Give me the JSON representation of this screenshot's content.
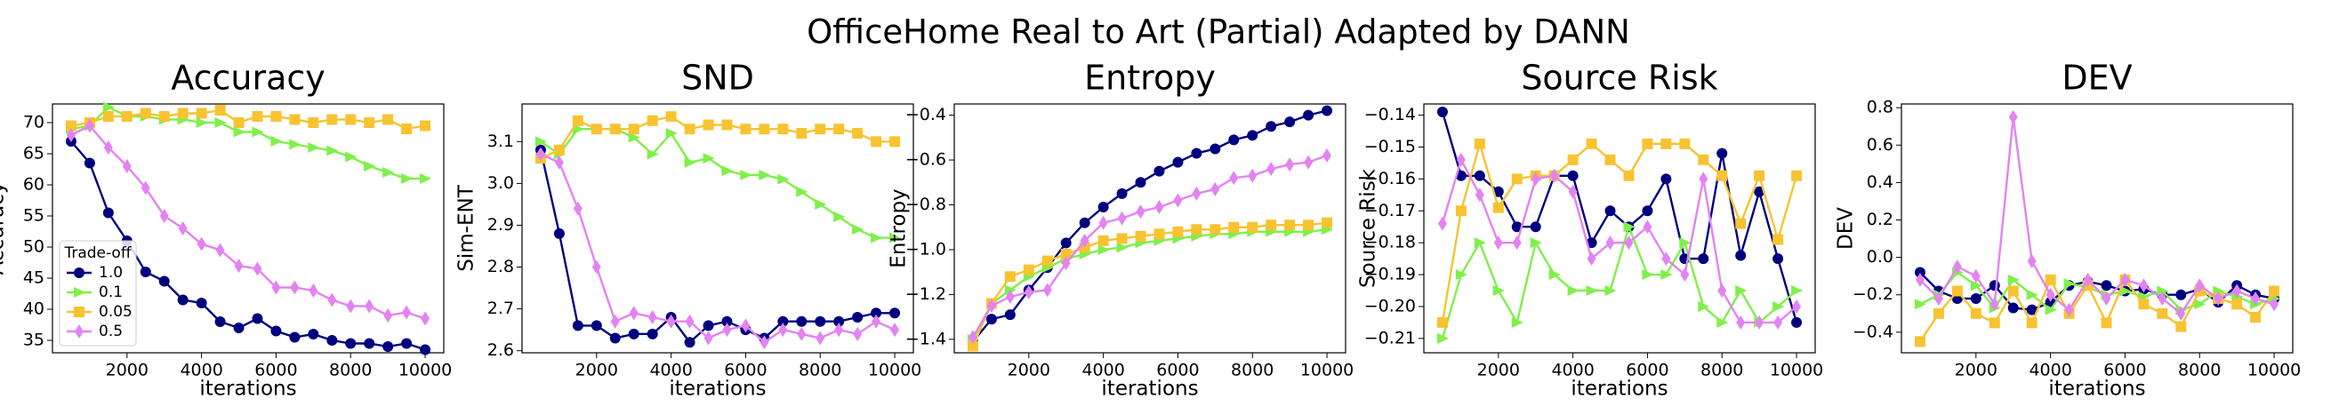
{
  "title": "OfficeHome Real to Art (Partial) Adapted by DANN",
  "chart_data": [
    {
      "type": "line",
      "title": "Accuracy",
      "x_label": "iterations",
      "y_label": "Accuracy",
      "x": [
        500,
        1000,
        1500,
        2000,
        2500,
        3000,
        3500,
        4000,
        4500,
        5000,
        5500,
        6000,
        6500,
        7000,
        7500,
        8000,
        8500,
        9000,
        9500,
        10000
      ],
      "xlim": [
        0,
        10500
      ],
      "xticks": [
        2000,
        4000,
        6000,
        8000,
        10000
      ],
      "ylim": [
        33,
        73
      ],
      "yticks": [
        35,
        40,
        45,
        50,
        55,
        60,
        65,
        70
      ],
      "legend": "lower left",
      "legend_title": "Trade-off",
      "series": [
        {
          "name": "1.0",
          "color": "#00007f",
          "marker": "circle",
          "values": [
            67,
            63.5,
            55.5,
            51,
            46,
            44.5,
            41.5,
            41,
            38,
            37,
            38.5,
            36.5,
            35.5,
            36,
            35,
            34.5,
            34.5,
            34,
            34.5,
            33.5
          ]
        },
        {
          "name": "0.1",
          "color": "#7ff04a",
          "marker": "triangle",
          "values": [
            69,
            69.5,
            72.5,
            71,
            71,
            70.5,
            70.5,
            70,
            70,
            68.5,
            68.5,
            67,
            66.5,
            66,
            65.5,
            64.5,
            63,
            62,
            61,
            61
          ]
        },
        {
          "name": "0.05",
          "color": "#f7c331",
          "marker": "square",
          "values": [
            69.5,
            70,
            71,
            71,
            71.5,
            71,
            71.5,
            71.5,
            72,
            70,
            71,
            71,
            70.5,
            70,
            70.5,
            70.5,
            70,
            70.5,
            69,
            69.5
          ]
        },
        {
          "name": "0.5",
          "color": "#e383f2",
          "marker": "diamond",
          "values": [
            68,
            69.5,
            66,
            63,
            59.5,
            55,
            53,
            50.5,
            49.5,
            47,
            46.5,
            43.5,
            43.5,
            43,
            41.5,
            40.5,
            40.5,
            39,
            39.5,
            38.5
          ]
        }
      ]
    },
    {
      "type": "line",
      "title": "SND",
      "x_label": "iterations",
      "y_label": "Sim-ENT",
      "x": [
        500,
        1000,
        1500,
        2000,
        2500,
        3000,
        3500,
        4000,
        4500,
        5000,
        5500,
        6000,
        6500,
        7000,
        7500,
        8000,
        8500,
        9000,
        9500,
        10000
      ],
      "xlim": [
        0,
        10500
      ],
      "xticks": [
        2000,
        4000,
        6000,
        8000,
        10000
      ],
      "ylim": [
        2.595,
        3.19
      ],
      "yticks": [
        2.6,
        2.7,
        2.8,
        2.9,
        {
          "value": 3,
          "label": "3.0"
        },
        3.1
      ],
      "series": [
        {
          "color": "#00007f",
          "marker": "circle",
          "values": [
            3.08,
            2.88,
            2.66,
            2.66,
            2.63,
            2.64,
            2.64,
            2.68,
            2.62,
            2.66,
            2.67,
            2.65,
            2.63,
            2.67,
            2.67,
            2.67,
            2.67,
            2.68,
            2.69,
            2.69
          ]
        },
        {
          "color": "#7ff04a",
          "marker": "triangle",
          "values": [
            3.1,
            3.07,
            3.13,
            3.13,
            3.13,
            3.11,
            3.07,
            3.12,
            3.05,
            3.06,
            3.03,
            3.02,
            3.02,
            3.01,
            2.98,
            2.95,
            2.92,
            2.89,
            2.87,
            2.87
          ]
        },
        {
          "color": "#f7c331",
          "marker": "square",
          "values": [
            3.06,
            3.08,
            3.15,
            3.13,
            3.13,
            3.13,
            3.15,
            3.16,
            3.13,
            3.14,
            3.14,
            3.13,
            3.13,
            3.13,
            3.12,
            3.13,
            3.13,
            3.12,
            3.1,
            3.1
          ]
        },
        {
          "color": "#e383f2",
          "marker": "diamond",
          "values": [
            3.07,
            3.05,
            2.94,
            2.8,
            2.67,
            2.69,
            2.68,
            2.67,
            2.67,
            2.63,
            2.65,
            2.66,
            2.62,
            2.65,
            2.64,
            2.63,
            2.65,
            2.64,
            2.67,
            2.65
          ]
        }
      ]
    },
    {
      "type": "line",
      "title": "Entropy",
      "x_label": "iterations",
      "y_label": "Entropy",
      "x": [
        500,
        1000,
        1500,
        2000,
        2500,
        3000,
        3500,
        4000,
        4500,
        5000,
        5500,
        6000,
        6500,
        7000,
        7500,
        8000,
        8500,
        9000,
        9500,
        10000
      ],
      "xlim": [
        0,
        10500
      ],
      "xticks": [
        2000,
        4000,
        6000,
        8000,
        10000
      ],
      "ylim": [
        -1.46,
        -0.35
      ],
      "yticks": [
        {
          "value": -1.4,
          "label": "−1.4"
        },
        {
          "value": -1.2,
          "label": "−1.2"
        },
        {
          "value": -1,
          "label": "−1.0"
        },
        {
          "value": -0.8,
          "label": "−0.8"
        },
        {
          "value": -0.6,
          "label": "−0.6"
        },
        {
          "value": -0.4,
          "label": "−0.4"
        }
      ],
      "series": [
        {
          "color": "#00007f",
          "marker": "circle",
          "values": [
            -1.41,
            -1.31,
            -1.29,
            -1.18,
            -1.08,
            -0.97,
            -0.88,
            -0.81,
            -0.75,
            -0.7,
            -0.65,
            -0.61,
            -0.57,
            -0.55,
            -0.51,
            -0.49,
            -0.45,
            -0.43,
            -0.4,
            -0.38
          ]
        },
        {
          "color": "#7ff04a",
          "marker": "triangle",
          "values": [
            -1.4,
            -1.24,
            -1.18,
            -1.12,
            -1.08,
            -1.04,
            -1.02,
            -1,
            -0.99,
            -0.97,
            -0.96,
            -0.95,
            -0.94,
            -0.93,
            -0.93,
            -0.92,
            -0.92,
            -0.92,
            -0.92,
            -0.91
          ]
        },
        {
          "color": "#f7c331",
          "marker": "square",
          "values": [
            -1.43,
            -1.24,
            -1.12,
            -1.09,
            -1.05,
            -1.02,
            -0.99,
            -0.96,
            -0.95,
            -0.94,
            -0.93,
            -0.92,
            -0.91,
            -0.91,
            -0.9,
            -0.9,
            -0.89,
            -0.89,
            -0.89,
            -0.88
          ]
        },
        {
          "color": "#e383f2",
          "marker": "diamond",
          "values": [
            -1.39,
            -1.25,
            -1.21,
            -1.19,
            -1.18,
            -1.06,
            -0.96,
            -0.88,
            -0.86,
            -0.83,
            -0.81,
            -0.78,
            -0.75,
            -0.73,
            -0.68,
            -0.67,
            -0.64,
            -0.62,
            -0.61,
            -0.58
          ]
        }
      ]
    },
    {
      "type": "line",
      "title": "Source Risk",
      "x_label": "iterations",
      "y_label": "Source Risk",
      "x": [
        500,
        1000,
        1500,
        2000,
        2500,
        3000,
        3500,
        4000,
        4500,
        5000,
        5500,
        6000,
        6500,
        7000,
        7500,
        8000,
        8500,
        9000,
        9500,
        10000
      ],
      "xlim": [
        0,
        10500
      ],
      "xticks": [
        2000,
        4000,
        6000,
        8000,
        10000
      ],
      "ylim": [
        -0.2145,
        -0.1365
      ],
      "yticks": [
        {
          "value": -0.14,
          "label": "−0.14"
        },
        {
          "value": -0.15,
          "label": "−0.15"
        },
        {
          "value": -0.16,
          "label": "−0.16"
        },
        {
          "value": -0.17,
          "label": "−0.17"
        },
        {
          "value": -0.18,
          "label": "−0.18"
        },
        {
          "value": -0.19,
          "label": "−0.19"
        },
        {
          "value": -0.2,
          "label": "−0.20"
        },
        {
          "value": -0.21,
          "label": "−0.21"
        }
      ],
      "series": [
        {
          "color": "#00007f",
          "marker": "circle",
          "values": [
            -0.139,
            -0.159,
            -0.159,
            -0.164,
            -0.175,
            -0.175,
            -0.159,
            -0.159,
            -0.18,
            -0.17,
            -0.175,
            -0.17,
            -0.16,
            -0.185,
            -0.185,
            -0.152,
            -0.184,
            -0.164,
            -0.185,
            -0.205
          ]
        },
        {
          "color": "#7ff04a",
          "marker": "triangle",
          "values": [
            -0.21,
            -0.19,
            -0.18,
            -0.195,
            -0.205,
            -0.18,
            -0.19,
            -0.195,
            -0.195,
            -0.195,
            -0.175,
            -0.19,
            -0.19,
            -0.18,
            -0.2,
            -0.205,
            -0.195,
            -0.205,
            -0.2,
            -0.195
          ]
        },
        {
          "color": "#f7c331",
          "marker": "square",
          "values": [
            -0.205,
            -0.17,
            -0.149,
            -0.169,
            -0.16,
            -0.159,
            -0.159,
            -0.154,
            -0.149,
            -0.154,
            -0.159,
            -0.149,
            -0.149,
            -0.149,
            -0.154,
            -0.159,
            -0.174,
            -0.159,
            -0.179,
            -0.159
          ]
        },
        {
          "color": "#e383f2",
          "marker": "diamond",
          "values": [
            -0.174,
            -0.154,
            -0.165,
            -0.18,
            -0.18,
            -0.16,
            -0.159,
            -0.164,
            -0.185,
            -0.18,
            -0.18,
            -0.175,
            -0.185,
            -0.19,
            -0.16,
            -0.195,
            -0.205,
            -0.205,
            -0.205,
            -0.2
          ]
        }
      ]
    },
    {
      "type": "line",
      "title": "DEV",
      "x_label": "iterations",
      "y_label": "DEV",
      "x": [
        500,
        1000,
        1500,
        2000,
        2500,
        3000,
        3500,
        4000,
        4500,
        5000,
        5500,
        6000,
        6500,
        7000,
        7500,
        8000,
        8500,
        9000,
        9500,
        10000
      ],
      "xlim": [
        0,
        10500
      ],
      "xticks": [
        2000,
        4000,
        6000,
        8000,
        10000
      ],
      "ylim": [
        -0.51,
        0.82
      ],
      "yticks": [
        {
          "value": -0.4,
          "label": "−0.4"
        },
        {
          "value": -0.2,
          "label": "−0.2"
        },
        {
          "value": 0,
          "label": "0.0"
        },
        0.2,
        0.4,
        0.6,
        0.8
      ],
      "series": [
        {
          "color": "#00007f",
          "marker": "circle",
          "values": [
            -0.08,
            -0.18,
            -0.22,
            -0.22,
            -0.15,
            -0.27,
            -0.28,
            -0.24,
            -0.15,
            -0.13,
            -0.15,
            -0.18,
            -0.17,
            -0.2,
            -0.2,
            -0.17,
            -0.24,
            -0.15,
            -0.2,
            -0.22
          ]
        },
        {
          "color": "#7ff04a",
          "marker": "triangle",
          "values": [
            -0.25,
            -0.2,
            -0.08,
            -0.15,
            -0.27,
            -0.12,
            -0.2,
            -0.28,
            -0.14,
            -0.16,
            -0.2,
            -0.18,
            -0.21,
            -0.18,
            -0.28,
            -0.25,
            -0.18,
            -0.21,
            -0.25,
            -0.22
          ]
        },
        {
          "color": "#f7c331",
          "marker": "square",
          "values": [
            -0.45,
            -0.3,
            -0.18,
            -0.3,
            -0.35,
            -0.18,
            -0.35,
            -0.12,
            -0.3,
            -0.15,
            -0.35,
            -0.12,
            -0.25,
            -0.3,
            -0.37,
            -0.18,
            -0.22,
            -0.25,
            -0.32,
            -0.18
          ]
        },
        {
          "color": "#e383f2",
          "marker": "diamond",
          "values": [
            -0.12,
            -0.22,
            -0.05,
            -0.1,
            -0.25,
            0.75,
            -0.02,
            -0.2,
            -0.28,
            -0.12,
            -0.22,
            -0.12,
            -0.15,
            -0.22,
            -0.3,
            -0.15,
            -0.22,
            -0.18,
            -0.22,
            -0.25
          ]
        }
      ]
    }
  ]
}
